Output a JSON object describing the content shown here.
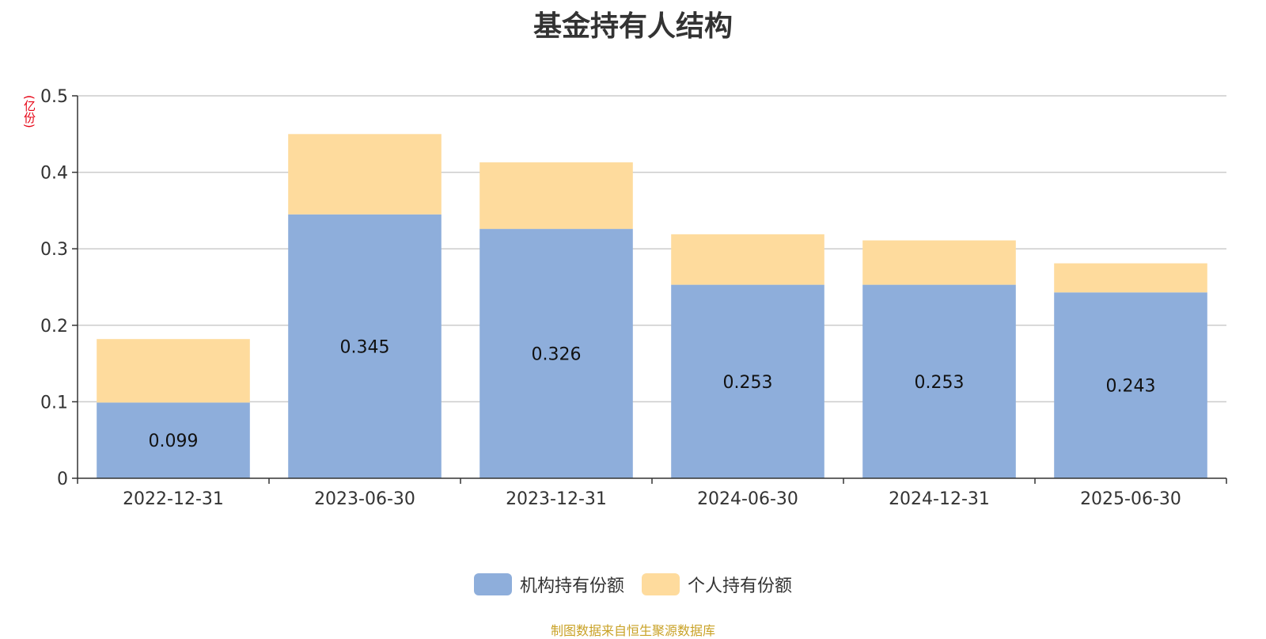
{
  "chart_data": {
    "type": "bar",
    "stacked": true,
    "title": "基金持有人结构",
    "ylabel": "(亿份)",
    "ylim": [
      0,
      0.5
    ],
    "yticks": [
      "0",
      "0.1",
      "0.2",
      "0.3",
      "0.4",
      "0.5"
    ],
    "grid": true,
    "legend_position": "bottom-center",
    "categories": [
      "2022-12-31",
      "2023-06-30",
      "2023-12-31",
      "2024-06-30",
      "2024-12-31",
      "2025-06-30"
    ],
    "series": [
      {
        "name": "机构持有份额",
        "color": "#8eaedb",
        "values": [
          0.099,
          0.345,
          0.326,
          0.253,
          0.253,
          0.243
        ],
        "labels": [
          "0.099",
          "0.345",
          "0.326",
          "0.253",
          "0.253",
          "0.243"
        ]
      },
      {
        "name": "个人持有份额",
        "color": "#fedb9d",
        "values": [
          0.083,
          0.105,
          0.087,
          0.066,
          0.058,
          0.038
        ]
      }
    ]
  },
  "source_note": "制图数据来自恒生聚源数据库"
}
